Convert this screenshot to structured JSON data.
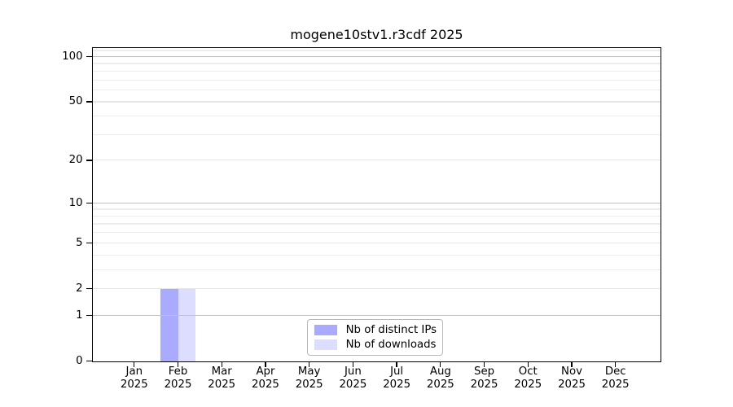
{
  "title": "mogene10stv1.r3cdf 2025",
  "colors": {
    "background": "#ffffff",
    "frame": "#000000",
    "bar_distinct_ips": "#aaaaff",
    "bar_downloads": "#ddddff",
    "grid_emphasis": "#c2c2c2",
    "grid_labeled": "#e6e6e6",
    "grid_minor": "#ededed",
    "legend_border": "#b9b9b9",
    "text": "#000000"
  },
  "chart_data": {
    "type": "bar",
    "title": "mogene10stv1.r3cdf 2025",
    "xlabel": "",
    "ylabel": "",
    "categories": [
      "Jan 2025",
      "Feb 2025",
      "Mar 2025",
      "Apr 2025",
      "May 2025",
      "Jun 2025",
      "Jul 2025",
      "Aug 2025",
      "Sep 2025",
      "Oct 2025",
      "Nov 2025",
      "Dec 2025"
    ],
    "series": [
      {
        "name": "Nb of distinct IPs",
        "color_key": "bar_distinct_ips",
        "values": [
          0,
          2,
          0,
          0,
          0,
          0,
          0,
          0,
          0,
          0,
          0,
          0
        ]
      },
      {
        "name": "Nb of downloads",
        "color_key": "bar_downloads",
        "values": [
          0,
          2,
          0,
          0,
          0,
          0,
          0,
          0,
          0,
          0,
          0,
          0
        ]
      }
    ],
    "y_scale": "log10(1+v)",
    "ylim": [
      0,
      114
    ],
    "y_ticks": [
      0,
      1,
      2,
      5,
      10,
      20,
      50,
      100
    ],
    "y_gridlines": {
      "emphasis": [
        1,
        10,
        100
      ],
      "labeled": [
        2,
        5,
        20,
        50
      ],
      "minor": [
        3,
        4,
        6,
        7,
        8,
        9,
        30,
        40,
        60,
        70,
        80,
        90,
        110
      ]
    },
    "grid": true,
    "legend_position": "lower center"
  }
}
